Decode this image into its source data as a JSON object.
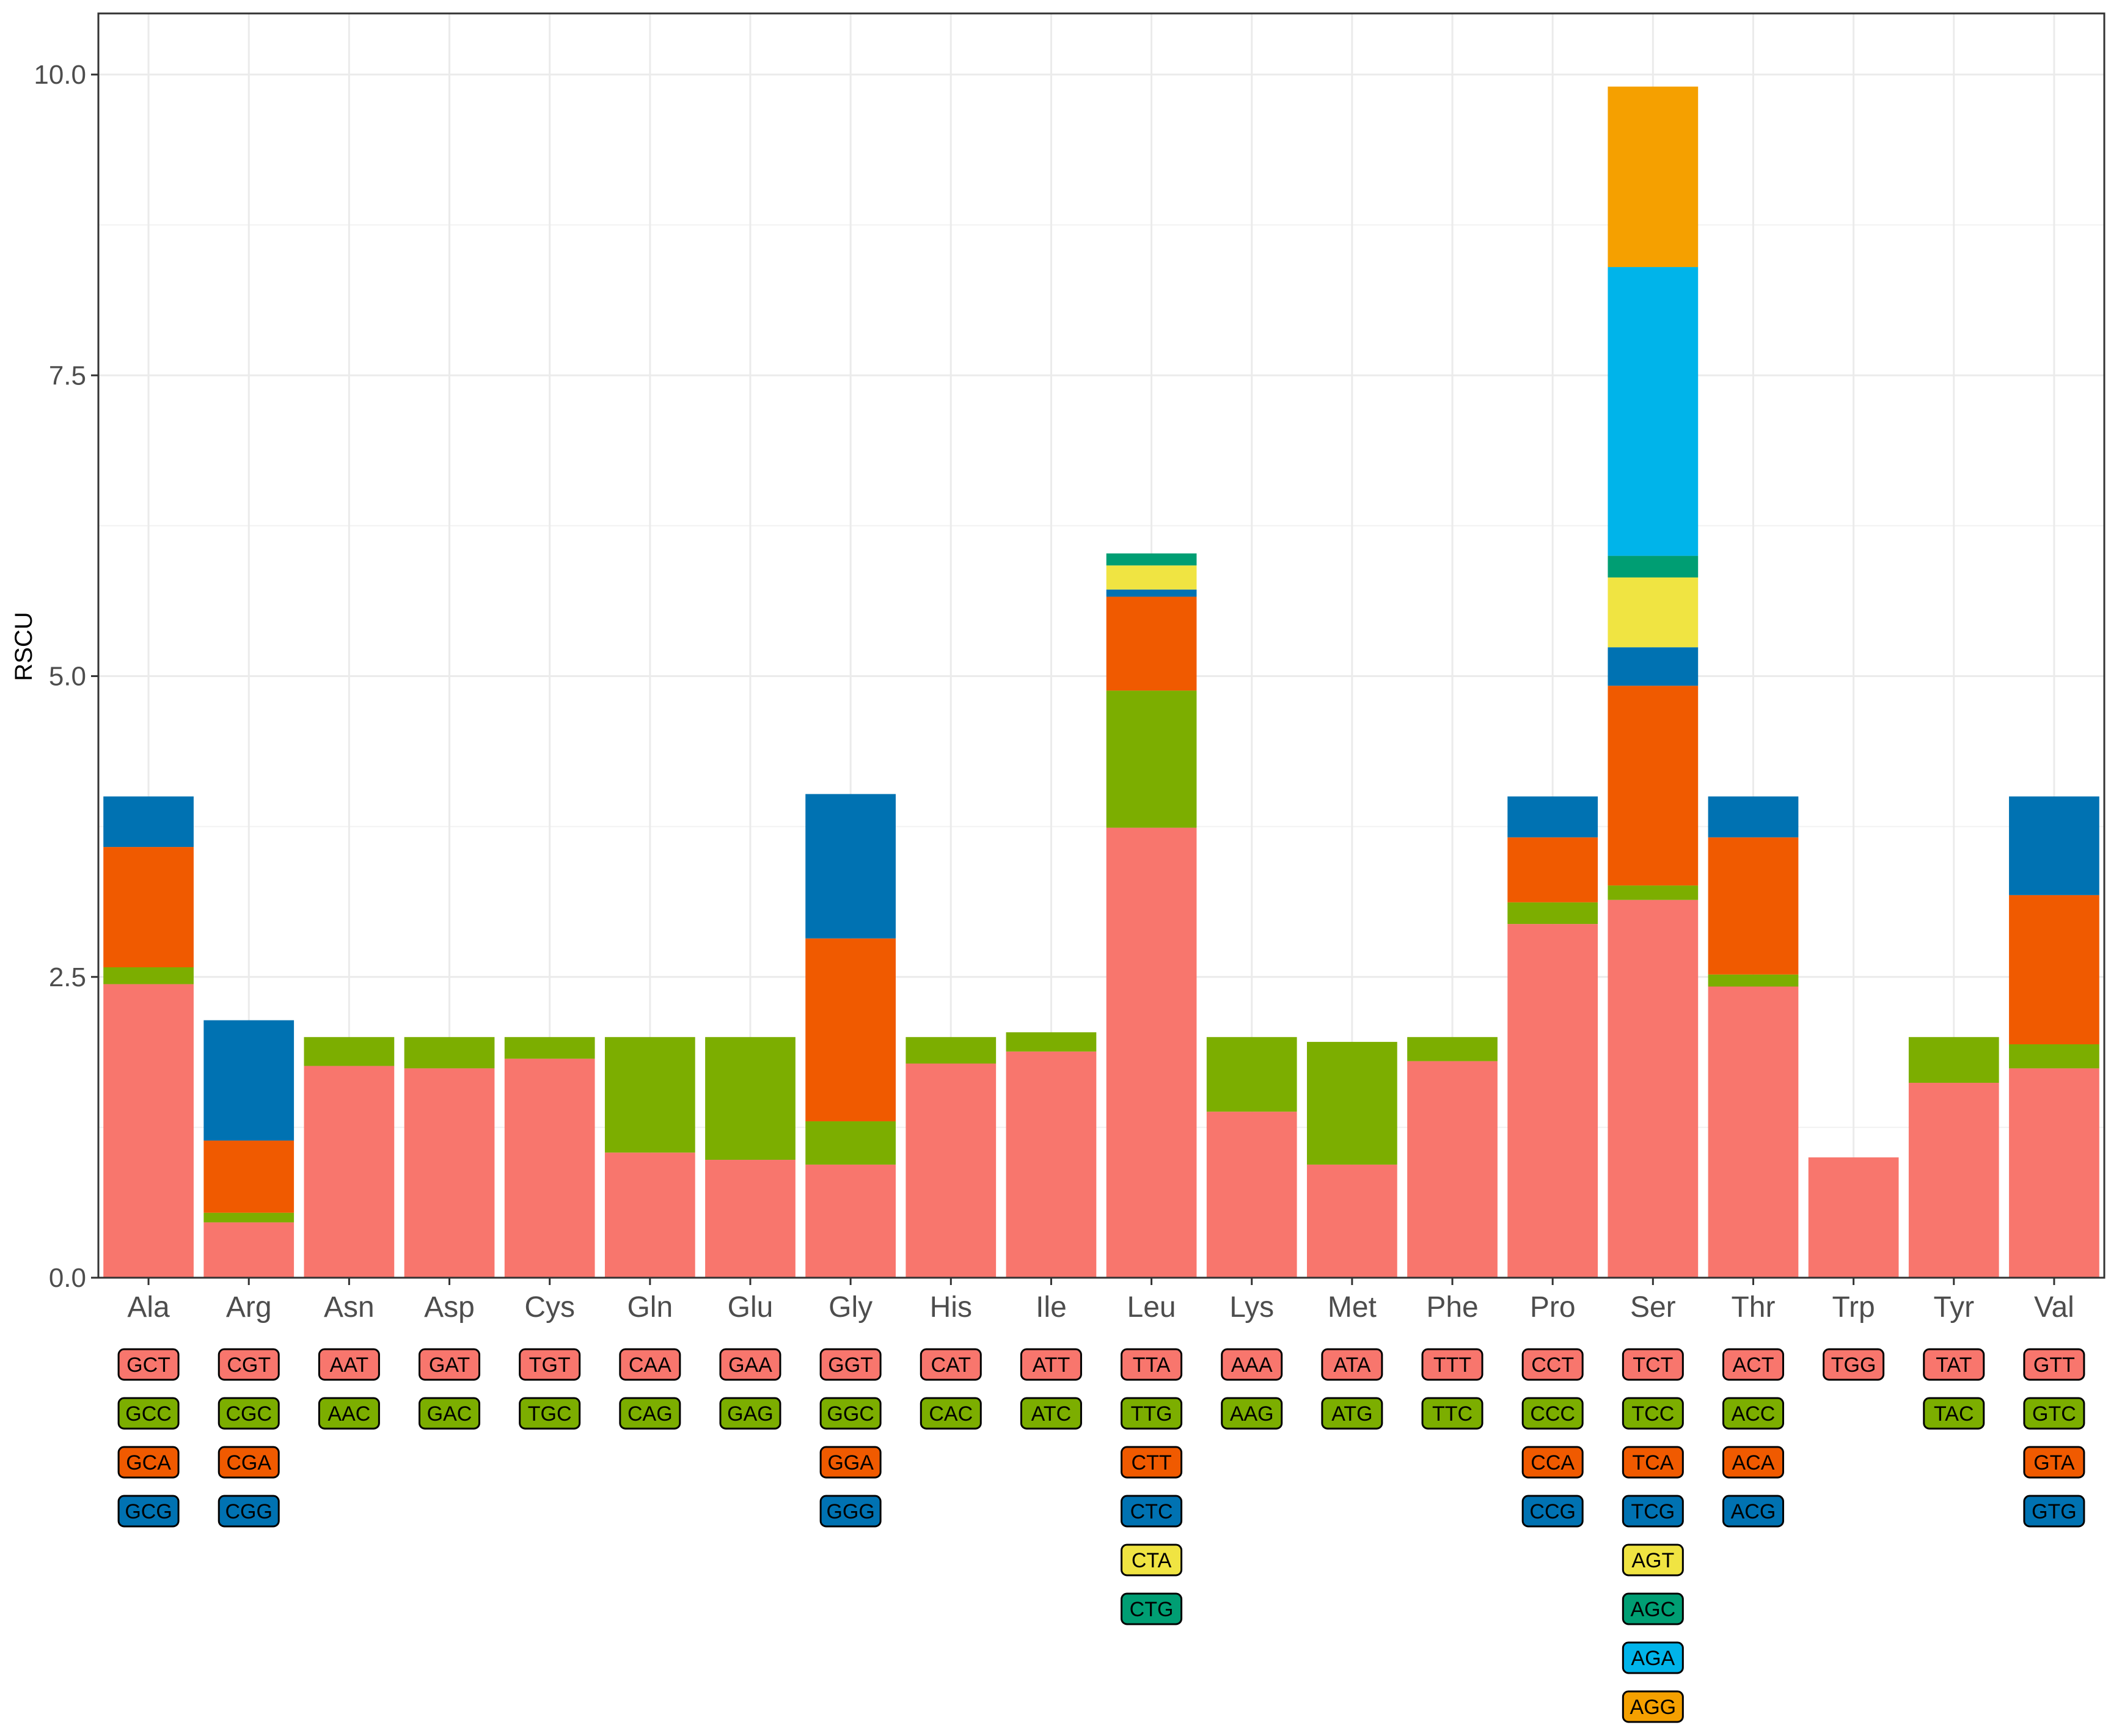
{
  "chart_data": {
    "type": "bar",
    "stacked": true,
    "title": "",
    "xlabel": "",
    "ylabel": "RSCU",
    "ylim": [
      0,
      10.5
    ],
    "yticks": [
      0.0,
      2.5,
      5.0,
      7.5,
      10.0
    ],
    "ytick_labels": [
      "0.0",
      "2.5",
      "5.0",
      "7.5",
      "10.0"
    ],
    "grid": true,
    "legend": "codon labels below each bar",
    "colors": [
      "#F8766D",
      "#7CAE00",
      "#F05A00",
      "#0072B2",
      "#F0E442",
      "#009E73",
      "#00B4EA",
      "#F5A000"
    ],
    "amino_acids": [
      {
        "name": "Ala",
        "codons": [
          "GCT",
          "GCC",
          "GCA",
          "GCG"
        ],
        "values": [
          2.44,
          0.14,
          1.0,
          0.42
        ]
      },
      {
        "name": "Arg",
        "codons": [
          "CGT",
          "CGC",
          "CGA",
          "CGG"
        ],
        "values": [
          0.46,
          0.08,
          0.6,
          1.0
        ]
      },
      {
        "name": "Asn",
        "codons": [
          "AAT",
          "AAC"
        ],
        "values": [
          1.76,
          0.24
        ]
      },
      {
        "name": "Asp",
        "codons": [
          "GAT",
          "GAC"
        ],
        "values": [
          1.74,
          0.26
        ]
      },
      {
        "name": "Cys",
        "codons": [
          "TGT",
          "TGC"
        ],
        "values": [
          1.82,
          0.18
        ]
      },
      {
        "name": "Gln",
        "codons": [
          "CAA",
          "CAG"
        ],
        "values": [
          1.04,
          0.96
        ]
      },
      {
        "name": "Glu",
        "codons": [
          "GAA",
          "GAG"
        ],
        "values": [
          0.98,
          1.02
        ]
      },
      {
        "name": "Gly",
        "codons": [
          "GGT",
          "GGC",
          "GGA",
          "GGG"
        ],
        "values": [
          0.94,
          0.36,
          1.52,
          1.2
        ]
      },
      {
        "name": "His",
        "codons": [
          "CAT",
          "CAC"
        ],
        "values": [
          1.78,
          0.22
        ]
      },
      {
        "name": "Ile",
        "codons": [
          "ATT",
          "ATC"
        ],
        "values": [
          1.88,
          0.16
        ]
      },
      {
        "name": "Leu",
        "codons": [
          "TTA",
          "TTG",
          "CTT",
          "CTC",
          "CTA",
          "CTG"
        ],
        "values": [
          3.74,
          1.14,
          0.78,
          0.06,
          0.2,
          0.1
        ]
      },
      {
        "name": "Lys",
        "codons": [
          "AAA",
          "AAG"
        ],
        "values": [
          1.38,
          0.62
        ]
      },
      {
        "name": "Met",
        "codons": [
          "ATA",
          "ATG"
        ],
        "values": [
          0.94,
          1.02
        ]
      },
      {
        "name": "Phe",
        "codons": [
          "TTT",
          "TTC"
        ],
        "values": [
          1.8,
          0.2
        ]
      },
      {
        "name": "Pro",
        "codons": [
          "CCT",
          "CCC",
          "CCA",
          "CCG"
        ],
        "values": [
          2.94,
          0.18,
          0.54,
          0.34
        ]
      },
      {
        "name": "Ser",
        "codons": [
          "TCT",
          "TCC",
          "TCA",
          "TCG",
          "AGT",
          "AGC",
          "AGA",
          "AGG"
        ],
        "values": [
          3.14,
          0.12,
          1.66,
          0.32,
          0.58,
          0.18,
          2.4,
          1.5
        ]
      },
      {
        "name": "Thr",
        "codons": [
          "ACT",
          "ACC",
          "ACA",
          "ACG"
        ],
        "values": [
          2.42,
          0.1,
          1.14,
          0.34
        ]
      },
      {
        "name": "Trp",
        "codons": [
          "TGG"
        ],
        "values": [
          1.0
        ]
      },
      {
        "name": "Tyr",
        "codons": [
          "TAT",
          "TAC"
        ],
        "values": [
          1.62,
          0.38
        ]
      },
      {
        "name": "Val",
        "codons": [
          "GTT",
          "GTC",
          "GTA",
          "GTG"
        ],
        "values": [
          1.74,
          0.2,
          1.24,
          0.82
        ]
      }
    ]
  }
}
